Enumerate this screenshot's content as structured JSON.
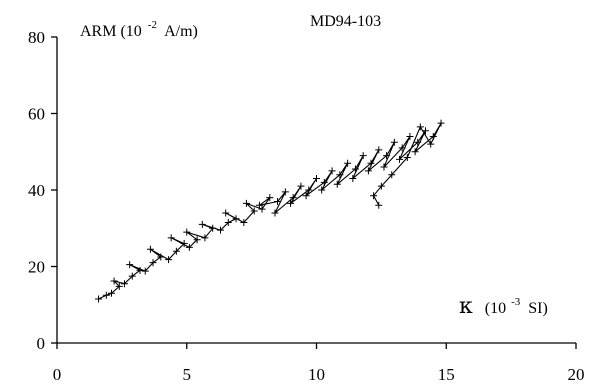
{
  "chart_data": {
    "type": "scatter",
    "title": "MD94-103",
    "ylabel": {
      "prefix": "ARM (10",
      "exp": "-2",
      "suffix": "A/m)"
    },
    "xlabel": {
      "symbol": "κ",
      "prefix": "(10",
      "exp": "-3",
      "suffix": "SI)"
    },
    "xlim": [
      0,
      20
    ],
    "ylim": [
      0,
      80
    ],
    "xticks": [
      {
        "value": 0,
        "label": "0"
      },
      {
        "value": 5,
        "label": "5"
      },
      {
        "value": 10,
        "label": "10"
      },
      {
        "value": 15,
        "label": "15"
      },
      {
        "value": 20,
        "label": "20"
      }
    ],
    "yticks": [
      {
        "value": 0,
        "label": "0"
      },
      {
        "value": 20,
        "label": "20"
      },
      {
        "value": 40,
        "label": "40"
      },
      {
        "value": 60,
        "label": "60"
      },
      {
        "value": 80,
        "label": "80"
      }
    ],
    "grid": false,
    "marker": "plus",
    "connected": true,
    "series": [
      {
        "x": [
          1.6,
          1.9,
          2.1,
          2.4,
          2.2,
          2.6,
          2.9,
          3.2,
          2.8,
          3.4,
          3.7,
          4.0,
          3.6,
          4.3,
          4.6,
          4.9,
          4.4,
          5.1,
          5.4,
          5.0,
          5.7,
          6.0,
          5.6,
          6.3,
          6.6,
          6.9,
          6.5,
          7.2,
          7.6,
          7.3,
          7.9,
          8.2,
          7.8,
          8.5,
          8.8,
          8.4,
          9.1,
          9.4,
          9.0,
          9.7,
          10.0,
          9.6,
          10.3,
          10.6,
          10.2,
          10.9,
          11.2,
          10.8,
          11.5,
          11.8,
          11.4,
          12.1,
          12.4,
          12.0,
          12.7,
          13.0,
          12.6,
          13.3,
          13.6,
          13.2,
          13.9,
          14.2,
          13.8,
          14.5,
          14.8,
          14.4,
          14.0,
          13.5,
          12.9,
          12.5,
          12.2,
          12.4
        ],
        "y": [
          11.5,
          12.5,
          13.0,
          14.8,
          16.2,
          15.5,
          17.5,
          19.0,
          20.5,
          18.8,
          21.0,
          22.5,
          24.5,
          21.8,
          24.0,
          26.0,
          27.5,
          25.0,
          27.0,
          29.0,
          27.5,
          30.0,
          31.0,
          29.5,
          31.5,
          32.5,
          34.0,
          31.5,
          34.5,
          36.5,
          35.0,
          38.0,
          36.0,
          37.0,
          39.5,
          34.0,
          38.0,
          41.0,
          36.5,
          40.0,
          43.0,
          38.5,
          42.0,
          45.0,
          40.0,
          44.0,
          47.0,
          41.5,
          45.5,
          49.0,
          43.0,
          47.0,
          50.5,
          45.0,
          49.0,
          52.5,
          46.0,
          51.0,
          54.0,
          48.0,
          52.5,
          55.5,
          50.0,
          54.0,
          57.5,
          52.0,
          56.5,
          48.5,
          44.0,
          41.0,
          38.5,
          36.0
        ]
      }
    ]
  }
}
